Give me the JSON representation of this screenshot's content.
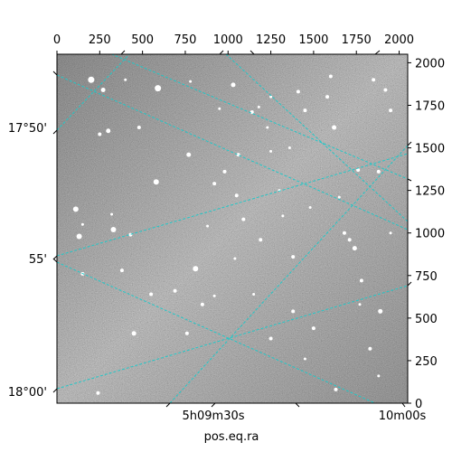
{
  "chart_data": {
    "type": "image",
    "xlabel": "pos.eq.ra",
    "ylabel": "",
    "pixel_axes": {
      "x": {
        "range": [
          0,
          2050
        ],
        "ticks": [
          0,
          250,
          500,
          750,
          1000,
          1250,
          1500,
          1750,
          2000
        ],
        "tick_labels": [
          "0",
          "250",
          "500",
          "750",
          "1000",
          "1250",
          "1500",
          "1750",
          "2000"
        ]
      },
      "y": {
        "range": [
          0,
          2050
        ],
        "ticks": [
          0,
          250,
          500,
          750,
          1000,
          1250,
          1500,
          1750,
          2000
        ],
        "tick_labels": [
          "0",
          "250",
          "500",
          "750",
          "1000",
          "1250",
          "1500",
          "1750",
          "2000"
        ]
      }
    },
    "world_axes": {
      "ra": {
        "tick_labels": [
          "5h09m30s",
          "10m00s"
        ]
      },
      "dec": {
        "tick_labels": [
          "17°50'",
          "55'",
          "18°00'"
        ]
      }
    },
    "grid": true,
    "grid_color": "#20c8c8",
    "colormap": "grayscale",
    "stars": [
      [
        200,
        1900,
        3.5
      ],
      [
        270,
        1840,
        2.5
      ],
      [
        590,
        1850,
        3.5
      ],
      [
        1030,
        1870,
        2.5
      ],
      [
        770,
        1460,
        2.5
      ],
      [
        1620,
        1620,
        2.5
      ],
      [
        1880,
        1360,
        2
      ],
      [
        1090,
        1080,
        2
      ],
      [
        580,
        1300,
        3
      ],
      [
        1060,
        1460,
        2
      ],
      [
        300,
        1600,
        2.5
      ],
      [
        1740,
        910,
        2.5
      ],
      [
        810,
        790,
        3
      ],
      [
        1780,
        720,
        2
      ],
      [
        330,
        1020,
        3
      ],
      [
        1680,
        1000,
        2
      ],
      [
        110,
        1140,
        3
      ],
      [
        130,
        980,
        3
      ],
      [
        1380,
        540,
        2
      ],
      [
        1890,
        540,
        2.5
      ],
      [
        450,
        410,
        2.5
      ],
      [
        1710,
        960,
        2
      ],
      [
        690,
        660,
        2
      ],
      [
        1380,
        860,
        2
      ],
      [
        1500,
        440,
        2
      ],
      [
        1190,
        960,
        2
      ],
      [
        430,
        990,
        2
      ],
      [
        980,
        1360,
        2
      ],
      [
        1600,
        1920,
        2
      ],
      [
        1450,
        1720,
        2
      ],
      [
        760,
        410,
        2
      ],
      [
        1250,
        380,
        2
      ],
      [
        380,
        780,
        2
      ],
      [
        1580,
        1800,
        2
      ],
      [
        1140,
        1710,
        2
      ],
      [
        1950,
        1720,
        2
      ],
      [
        1050,
        1220,
        2
      ],
      [
        920,
        1290,
        2
      ],
      [
        1250,
        1480,
        1.5
      ],
      [
        1360,
        1500,
        1.5
      ],
      [
        550,
        640,
        2
      ],
      [
        850,
        580,
        2
      ],
      [
        1850,
        1900,
        2
      ],
      [
        1920,
        1840,
        2
      ],
      [
        1760,
        1370,
        2
      ],
      [
        1180,
        1740,
        1.5
      ],
      [
        400,
        1900,
        1.5
      ],
      [
        1410,
        1830,
        2
      ],
      [
        1230,
        1620,
        1.5
      ],
      [
        250,
        1580,
        2
      ],
      [
        480,
        1620,
        2
      ],
      [
        1650,
        1210,
        1.5
      ],
      [
        1300,
        1250,
        1.5
      ],
      [
        1480,
        1150,
        1.5
      ],
      [
        320,
        1110,
        1.5
      ],
      [
        150,
        760,
        2
      ],
      [
        1150,
        640,
        1.5
      ],
      [
        1950,
        1000,
        1.5
      ],
      [
        1830,
        320,
        2
      ],
      [
        1630,
        80,
        2
      ],
      [
        240,
        60,
        2
      ],
      [
        1880,
        160,
        1.5
      ],
      [
        950,
        1730,
        1.5
      ],
      [
        780,
        1890,
        1.5
      ],
      [
        1450,
        260,
        1.5
      ],
      [
        1040,
        850,
        1.5
      ],
      [
        880,
        1040,
        1.5
      ],
      [
        150,
        1050,
        1.5
      ],
      [
        920,
        630,
        1.5
      ],
      [
        1770,
        580,
        1.5
      ],
      [
        1250,
        1800,
        1.5
      ],
      [
        1320,
        1100,
        1.5
      ]
    ]
  }
}
